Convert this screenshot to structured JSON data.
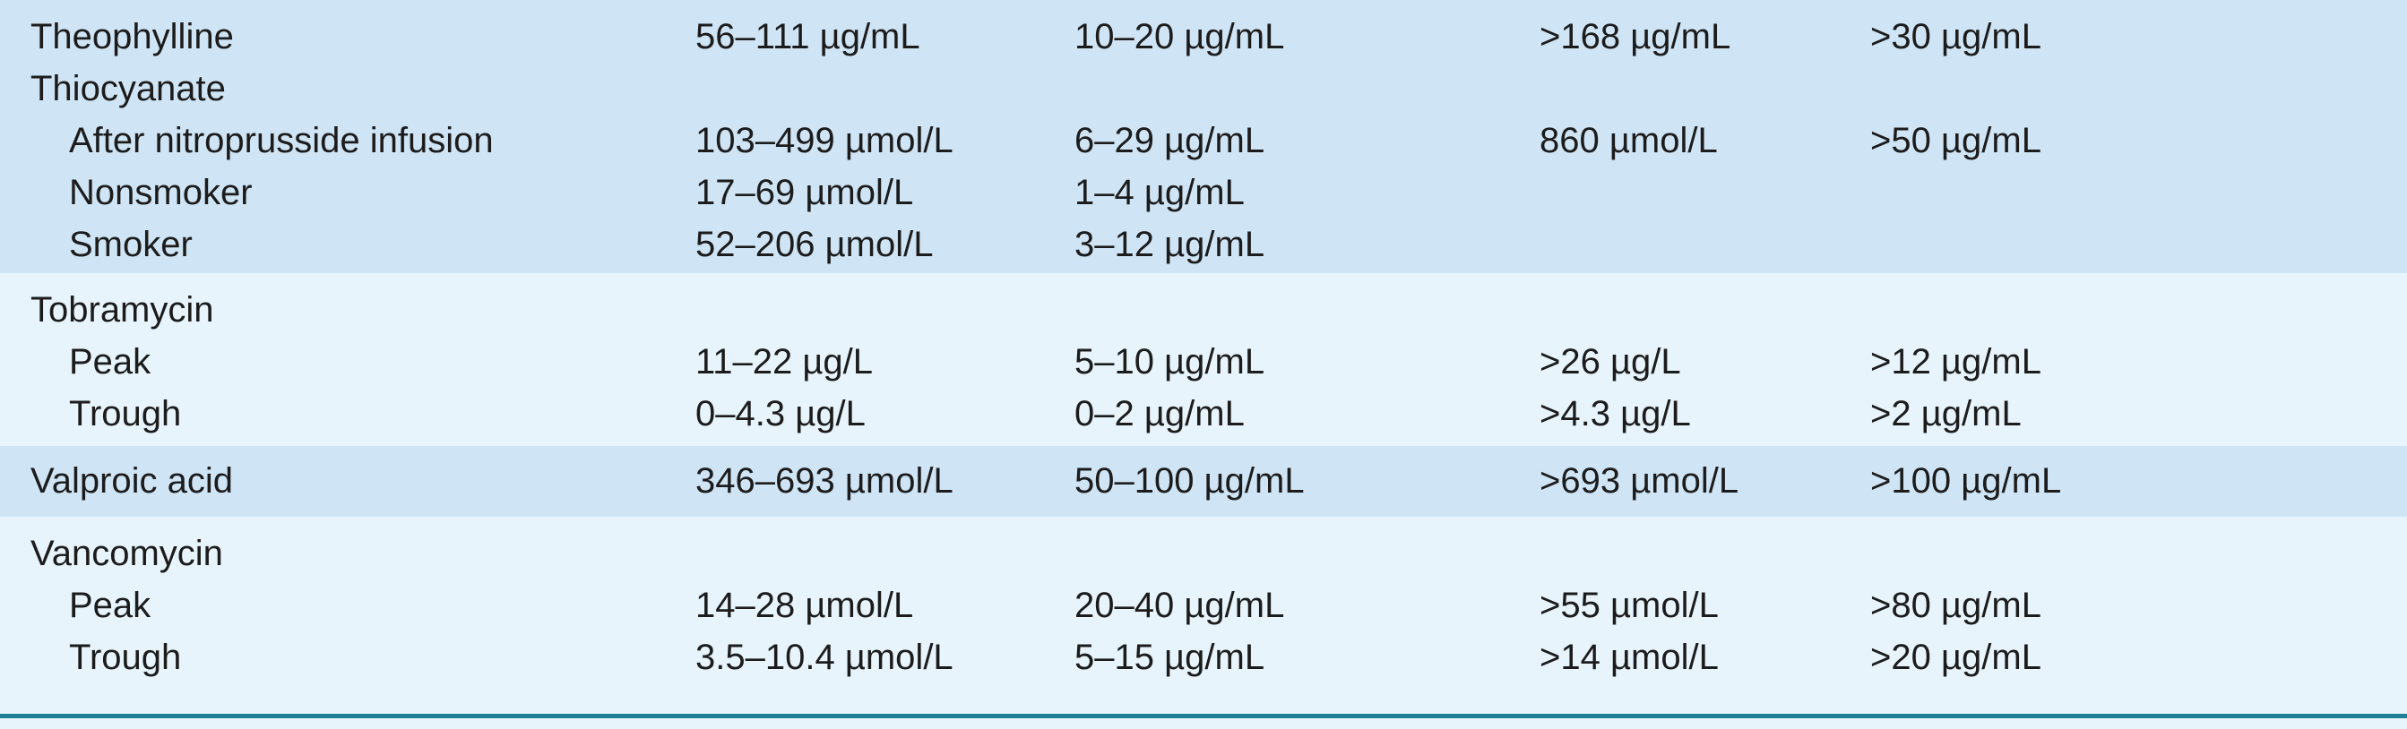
{
  "table": {
    "groups": [
      {
        "items": [
          {
            "cells": [
              "Theophylline",
              "56–111 µg/mL",
              "10–20 µg/mL",
              ">168 µg/mL",
              ">30 µg/mL"
            ]
          },
          {
            "cells": [
              "Thiocyanate"
            ],
            "subrows": [
              [
                "After nitroprusside infusion",
                "103–499 µmol/L",
                "6–29 µg/mL",
                "860 µmol/L",
                ">50 µg/mL"
              ],
              [
                "Nonsmoker",
                "17–69 µmol/L",
                "1–4 µg/mL"
              ],
              [
                "Smoker",
                "52–206 µmol/L",
                "3–12 µg/mL"
              ]
            ]
          }
        ]
      },
      {
        "items": [
          {
            "cells": [
              "Tobramycin"
            ],
            "subrows": [
              [
                "Peak",
                "11–22 µg/L",
                "5–10 µg/mL",
                ">26 µg/L",
                ">12 µg/mL"
              ],
              [
                "Trough",
                "0–4.3 µg/L",
                "0–2 µg/mL",
                ">4.3 µg/L",
                ">2 µg/mL"
              ]
            ]
          }
        ]
      },
      {
        "items": [
          {
            "cells": [
              "Valproic acid",
              "346–693 µmol/L",
              "50–100 µg/mL",
              ">693 µmol/L",
              ">100 µg/mL"
            ]
          }
        ]
      },
      {
        "items": [
          {
            "cells": [
              "Vancomycin"
            ],
            "subrows": [
              [
                "Peak",
                "14–28 µmol/L",
                "20–40 µg/mL",
                ">55 µmol/L",
                ">80 µg/mL"
              ],
              [
                "Trough",
                "3.5–10.4 µmol/L",
                "5–15 µg/mL",
                ">14 µmol/L",
                ">20 µg/mL"
              ]
            ]
          }
        ]
      }
    ]
  }
}
